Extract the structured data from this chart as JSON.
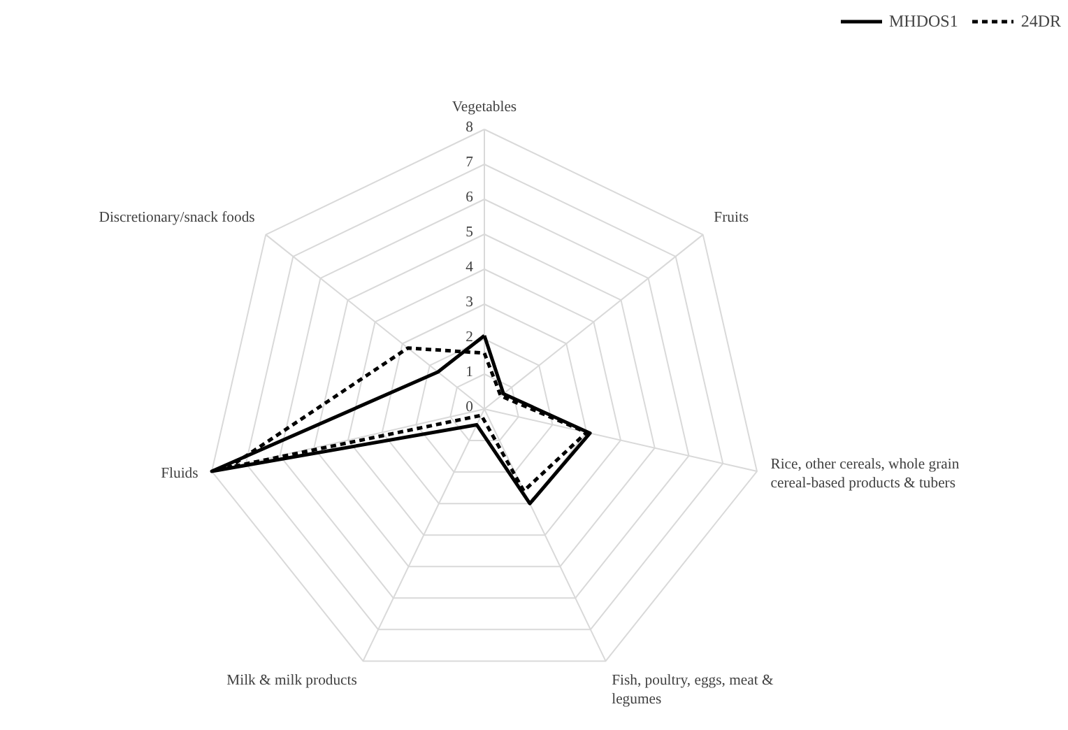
{
  "chart_data": {
    "type": "radar",
    "categories": [
      "Vegetables",
      "Fruits",
      "Rice, other cereals, whole grain\ncereal-based products & tubers",
      "Fish, poultry, eggs, meat &\nlegumes",
      "Milk & milk products",
      "Fluids",
      "Discretionary/snack foods"
    ],
    "series": [
      {
        "name": "MHDOS1",
        "color": "#000000",
        "line_style": "solid",
        "values": [
          2.1,
          0.7,
          3.1,
          3.0,
          0.5,
          8.0,
          1.7
        ]
      },
      {
        "name": "24DR",
        "color": "#000000",
        "line_style": "dashed",
        "values": [
          1.6,
          0.6,
          3.0,
          2.6,
          0.2,
          7.5,
          2.8
        ]
      }
    ],
    "ylim": [
      0,
      8
    ],
    "yticks": [
      0,
      1,
      2,
      3,
      4,
      5,
      6,
      7,
      8
    ],
    "legend": "top right"
  }
}
